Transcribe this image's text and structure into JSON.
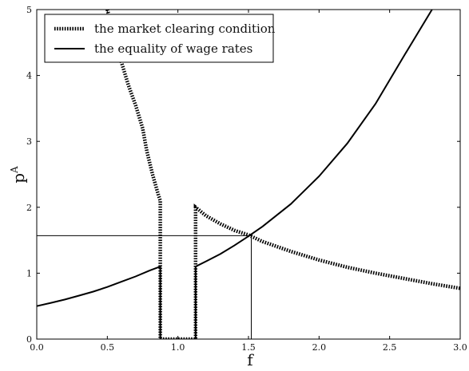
{
  "chart_data": {
    "type": "line",
    "xlabel": "f",
    "ylabel": "p^A",
    "ylabel_base": "p",
    "ylabel_sup": "A",
    "xlim": [
      0,
      3
    ],
    "ylim": [
      0,
      5
    ],
    "xticks": [
      "0.0",
      "0.5",
      "1.0",
      "1.5",
      "2.0",
      "2.5",
      "3.0"
    ],
    "xtick_values": [
      0,
      0.5,
      1.0,
      1.5,
      2.0,
      2.5,
      3.0
    ],
    "yticks": [
      "0",
      "1",
      "2",
      "3",
      "4",
      "5"
    ],
    "ytick_values": [
      0,
      1,
      2,
      3,
      4,
      5
    ],
    "grid": false,
    "legend_position": "top-left",
    "series": [
      {
        "name": "the market clearing condition",
        "style": "dotted",
        "color": "#000000",
        "points": [
          [
            0.5,
            5.0
          ],
          [
            0.55,
            4.6
          ],
          [
            0.6,
            4.2
          ],
          [
            0.65,
            3.85
          ],
          [
            0.7,
            3.55
          ],
          [
            0.75,
            3.2
          ],
          [
            0.78,
            2.85
          ],
          [
            0.82,
            2.5
          ],
          [
            0.86,
            2.2
          ],
          [
            0.875,
            2.1
          ],
          [
            0.875,
            1.1
          ],
          [
            0.875,
            0
          ],
          [
            1.125,
            0
          ],
          [
            1.125,
            1.1
          ],
          [
            1.125,
            2.0
          ],
          [
            1.2,
            1.87
          ],
          [
            1.3,
            1.75
          ],
          [
            1.4,
            1.65
          ],
          [
            1.5,
            1.58
          ],
          [
            1.6,
            1.48
          ],
          [
            1.8,
            1.33
          ],
          [
            2.0,
            1.2
          ],
          [
            2.2,
            1.09
          ],
          [
            2.4,
            1.0
          ],
          [
            2.6,
            0.92
          ],
          [
            2.8,
            0.84
          ],
          [
            3.0,
            0.77
          ]
        ]
      },
      {
        "name": "the equality of wage rates",
        "style": "solid",
        "color": "#000000",
        "segments": [
          [
            [
              0.0,
              0.5
            ],
            [
              0.1,
              0.55
            ],
            [
              0.2,
              0.6
            ],
            [
              0.3,
              0.66
            ],
            [
              0.4,
              0.72
            ],
            [
              0.5,
              0.79
            ],
            [
              0.6,
              0.87
            ],
            [
              0.7,
              0.95
            ],
            [
              0.8,
              1.04
            ],
            [
              0.875,
              1.1
            ],
            [
              0.875,
              0
            ]
          ],
          [
            [
              1.125,
              0
            ],
            [
              1.125,
              1.1
            ],
            [
              1.2,
              1.18
            ],
            [
              1.3,
              1.29
            ],
            [
              1.4,
              1.42
            ],
            [
              1.5,
              1.56
            ],
            [
              1.6,
              1.71
            ],
            [
              1.8,
              2.05
            ],
            [
              2.0,
              2.47
            ],
            [
              2.2,
              2.97
            ],
            [
              2.4,
              3.57
            ],
            [
              2.6,
              4.29
            ],
            [
              2.8,
              5.0
            ]
          ]
        ]
      }
    ],
    "reference_lines": {
      "horizontal_y": 1.57,
      "vertical_x": 1.52
    }
  }
}
